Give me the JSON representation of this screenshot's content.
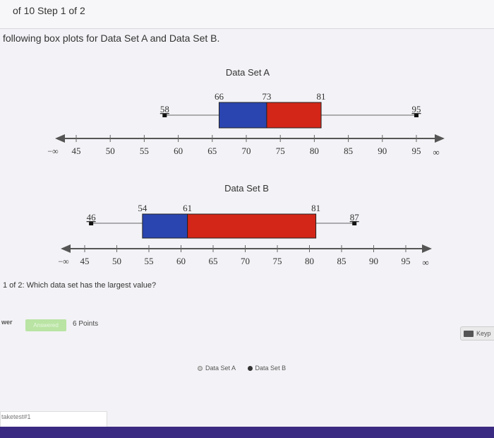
{
  "header": {
    "step_text": "of 10 Step 1 of 2"
  },
  "prompt_text": "following box plots for Data Set A and Data Set B.",
  "question_text": "1 of 2: Which data set has the largest value?",
  "answer": {
    "row_label": "wer",
    "status_badge": "Answered",
    "points": "6 Points"
  },
  "keypad_label": "Keyp",
  "options": [
    {
      "label": "Data Set A",
      "selected": false
    },
    {
      "label": "Data Set B",
      "selected": true
    }
  ],
  "footer_text": "taketest#1",
  "colors": {
    "blue": "#2a45b0",
    "red": "#d32618"
  },
  "chart_data": [
    {
      "type": "boxplot",
      "title": "Data Set A",
      "min": 58,
      "q1": 66,
      "median": 73,
      "q3": 81,
      "max": 95,
      "min_label": "58",
      "q1_label": "66",
      "median_label": "73",
      "q3_label": "81",
      "max_label": "95",
      "axis_ticks": [
        "45",
        "50",
        "55",
        "60",
        "65",
        "70",
        "75",
        "80",
        "85",
        "90",
        "95"
      ],
      "axis_left_label": "−∞",
      "axis_right_label": "∞"
    },
    {
      "type": "boxplot",
      "title": "Data Set B",
      "min": 46,
      "q1": 54,
      "median": 61,
      "q3": 81,
      "max": 87,
      "min_label": "46",
      "q1_label": "54",
      "median_label": "61",
      "q3_label": "81",
      "max_label": "87",
      "axis_ticks": [
        "45",
        "50",
        "55",
        "60",
        "65",
        "70",
        "75",
        "80",
        "85",
        "90",
        "95"
      ],
      "axis_left_label": "−∞",
      "axis_right_label": "∞"
    }
  ]
}
